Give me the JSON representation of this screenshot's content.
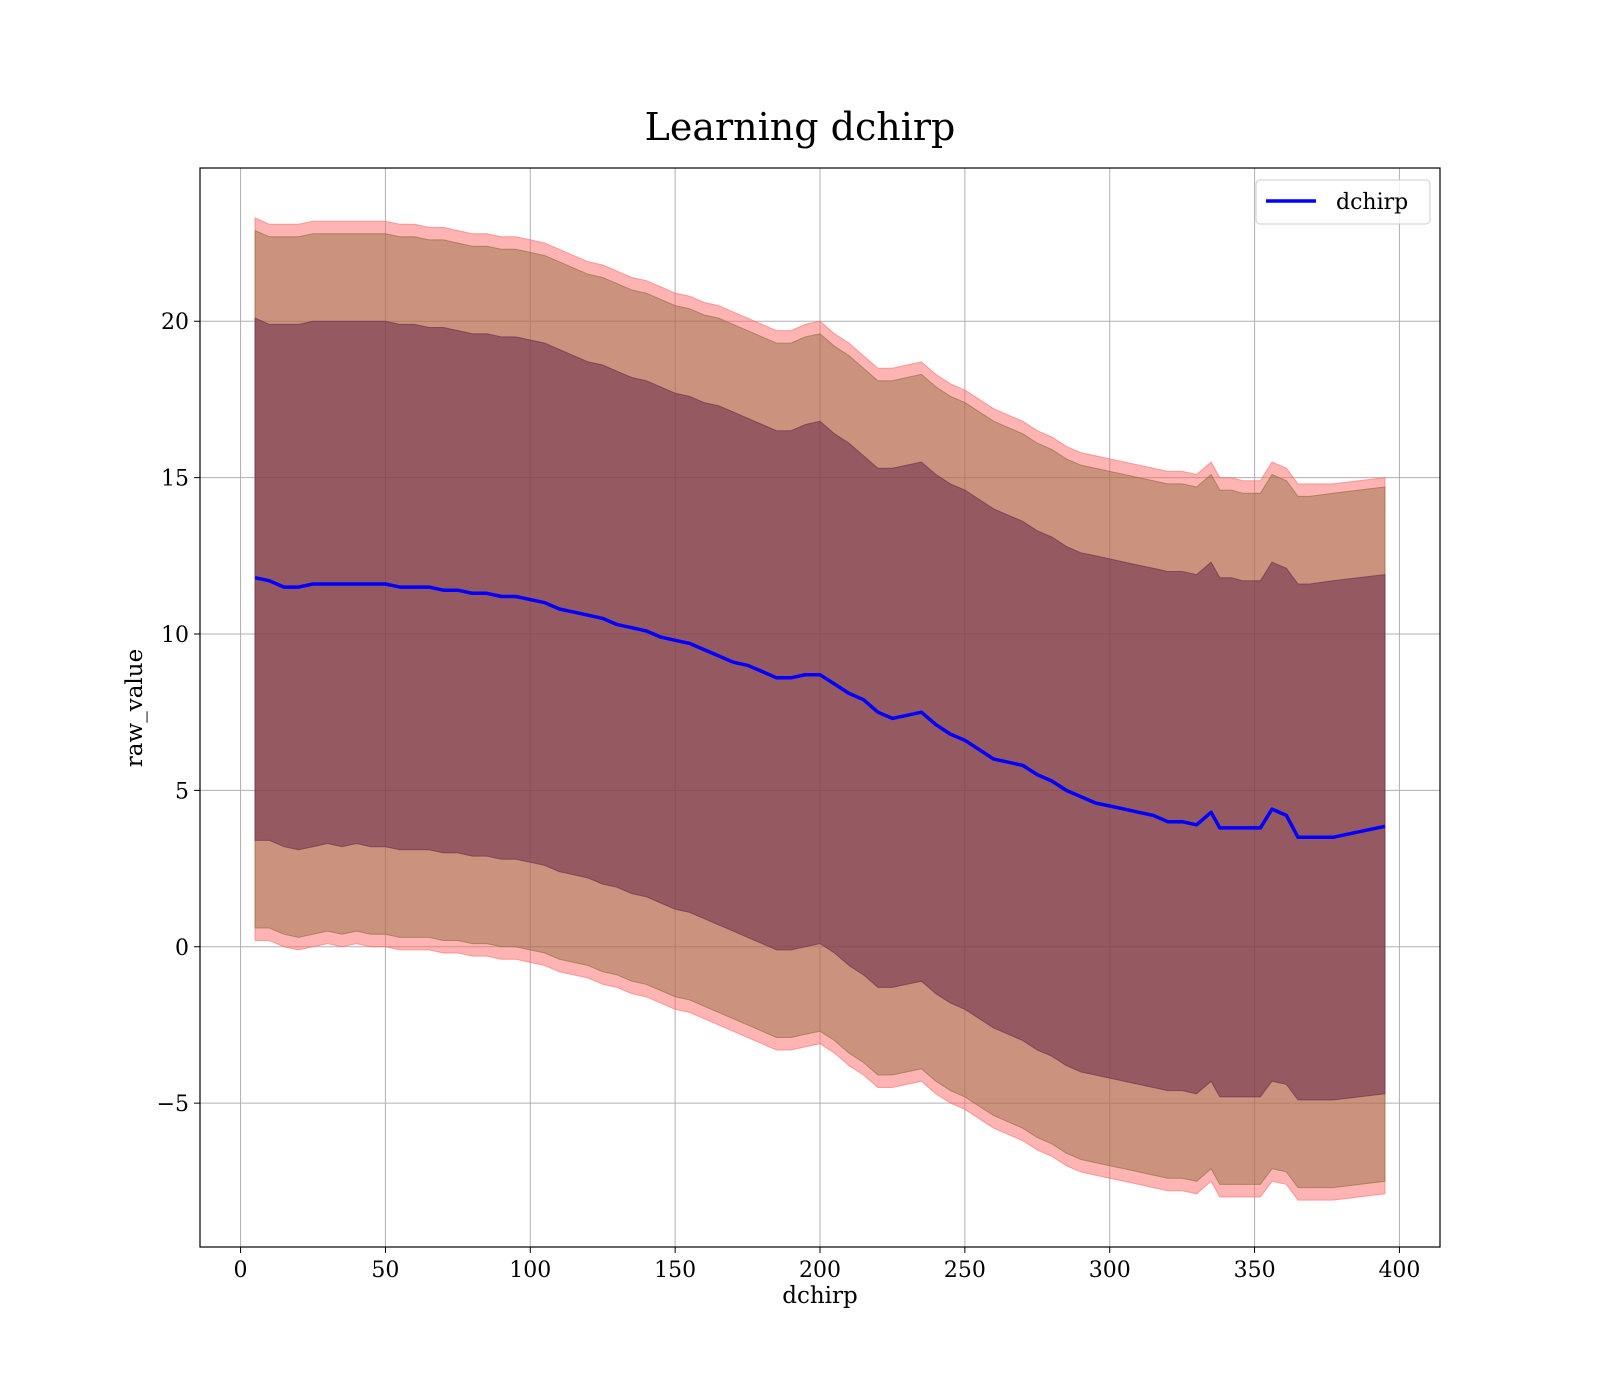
{
  "chart_data": {
    "type": "line",
    "title": "Learning dchirp",
    "xlabel": "dchirp",
    "ylabel": "raw_value",
    "xlim": [
      -14,
      414
    ],
    "ylim": [
      -9.6,
      24.9
    ],
    "x_ticks": [
      0,
      50,
      100,
      150,
      200,
      250,
      300,
      350,
      400
    ],
    "y_ticks": [
      -5,
      0,
      5,
      10,
      15,
      20
    ],
    "x_tick_labels": [
      "0",
      "50",
      "100",
      "150",
      "200",
      "250",
      "300",
      "350",
      "400"
    ],
    "y_tick_labels": [
      "−5",
      "0",
      "5",
      "10",
      "15",
      "20"
    ],
    "grid": true,
    "legend_position": "top-right",
    "series": [
      {
        "name": "dchirp",
        "color": "#0000ff",
        "x": [
          5,
          10,
          15,
          20,
          25,
          30,
          35,
          40,
          45,
          50,
          55,
          60,
          65,
          70,
          75,
          80,
          85,
          90,
          95,
          100,
          105,
          110,
          115,
          120,
          125,
          130,
          135,
          140,
          145,
          150,
          155,
          160,
          165,
          170,
          175,
          180,
          185,
          190,
          195,
          200,
          205,
          210,
          215,
          220,
          225,
          230,
          235,
          240,
          245,
          250,
          255,
          260,
          265,
          270,
          275,
          280,
          285,
          290,
          295,
          300,
          305,
          310,
          315,
          320,
          325,
          330,
          335,
          338,
          342,
          346,
          352,
          356,
          361,
          365,
          369,
          377,
          395
        ],
        "y": [
          11.8,
          11.7,
          11.5,
          11.5,
          11.6,
          11.6,
          11.6,
          11.6,
          11.6,
          11.6,
          11.5,
          11.5,
          11.5,
          11.4,
          11.4,
          11.3,
          11.3,
          11.2,
          11.2,
          11.1,
          11.0,
          10.8,
          10.7,
          10.6,
          10.5,
          10.3,
          10.2,
          10.1,
          9.9,
          9.8,
          9.7,
          9.5,
          9.3,
          9.1,
          9.0,
          8.8,
          8.6,
          8.6,
          8.7,
          8.7,
          8.4,
          8.1,
          7.9,
          7.5,
          7.3,
          7.4,
          7.5,
          7.1,
          6.8,
          6.6,
          6.3,
          6.0,
          5.9,
          5.8,
          5.5,
          5.3,
          5.0,
          4.8,
          4.6,
          4.5,
          4.4,
          4.3,
          4.2,
          4.0,
          4.0,
          3.9,
          4.3,
          3.8,
          3.8,
          3.8,
          3.8,
          4.4,
          4.2,
          3.5,
          3.5,
          3.5,
          3.85
        ]
      }
    ],
    "bands": [
      {
        "color": "#ff6a6a",
        "opacity": 0.5,
        "upper": [
          23.3,
          23.1,
          23.1,
          23.1,
          23.2,
          23.2,
          23.2,
          23.2,
          23.2,
          23.2,
          23.1,
          23.1,
          23.0,
          23.0,
          22.9,
          22.8,
          22.8,
          22.7,
          22.7,
          22.6,
          22.5,
          22.3,
          22.1,
          21.9,
          21.8,
          21.6,
          21.4,
          21.3,
          21.1,
          20.9,
          20.8,
          20.6,
          20.5,
          20.3,
          20.1,
          19.9,
          19.7,
          19.7,
          19.9,
          20.0,
          19.6,
          19.3,
          18.9,
          18.5,
          18.5,
          18.6,
          18.7,
          18.3,
          18.0,
          17.8,
          17.5,
          17.2,
          17.0,
          16.8,
          16.5,
          16.3,
          16.0,
          15.8,
          15.7,
          15.6,
          15.5,
          15.4,
          15.3,
          15.2,
          15.2,
          15.1,
          15.5,
          15.0,
          15.0,
          14.9,
          14.9,
          15.5,
          15.3,
          14.8,
          14.8,
          14.8,
          15.0
        ],
        "lower": [
          0.2,
          0.2,
          0.0,
          -0.1,
          0.0,
          0.1,
          0.0,
          0.1,
          0.0,
          0.0,
          -0.1,
          -0.1,
          -0.1,
          -0.2,
          -0.2,
          -0.3,
          -0.3,
          -0.4,
          -0.4,
          -0.5,
          -0.6,
          -0.8,
          -0.9,
          -1.0,
          -1.2,
          -1.3,
          -1.5,
          -1.6,
          -1.8,
          -2.0,
          -2.1,
          -2.3,
          -2.5,
          -2.7,
          -2.9,
          -3.1,
          -3.3,
          -3.3,
          -3.2,
          -3.1,
          -3.4,
          -3.8,
          -4.1,
          -4.5,
          -4.5,
          -4.4,
          -4.3,
          -4.7,
          -5.0,
          -5.2,
          -5.5,
          -5.8,
          -6.0,
          -6.2,
          -6.5,
          -6.7,
          -7.0,
          -7.2,
          -7.3,
          -7.4,
          -7.5,
          -7.6,
          -7.7,
          -7.8,
          -7.8,
          -7.9,
          -7.5,
          -8.0,
          -8.0,
          -8.0,
          -8.0,
          -7.5,
          -7.6,
          -8.1,
          -8.1,
          -8.1,
          -7.9
        ]
      },
      {
        "color": "#8b6a3c",
        "opacity": 0.45,
        "upper": [
          22.9,
          22.7,
          22.7,
          22.7,
          22.8,
          22.8,
          22.8,
          22.8,
          22.8,
          22.8,
          22.7,
          22.7,
          22.6,
          22.6,
          22.5,
          22.4,
          22.4,
          22.3,
          22.3,
          22.2,
          22.1,
          21.9,
          21.7,
          21.5,
          21.4,
          21.2,
          21.0,
          20.9,
          20.7,
          20.5,
          20.4,
          20.2,
          20.1,
          19.9,
          19.7,
          19.5,
          19.3,
          19.3,
          19.5,
          19.6,
          19.2,
          18.9,
          18.5,
          18.1,
          18.1,
          18.2,
          18.3,
          17.9,
          17.6,
          17.4,
          17.1,
          16.8,
          16.6,
          16.4,
          16.1,
          15.9,
          15.6,
          15.4,
          15.3,
          15.2,
          15.1,
          15.0,
          14.9,
          14.8,
          14.8,
          14.7,
          15.1,
          14.6,
          14.6,
          14.5,
          14.5,
          15.1,
          14.9,
          14.4,
          14.4,
          14.5,
          14.7
        ],
        "lower": [
          0.6,
          0.6,
          0.4,
          0.3,
          0.4,
          0.5,
          0.4,
          0.5,
          0.4,
          0.4,
          0.3,
          0.3,
          0.3,
          0.2,
          0.2,
          0.1,
          0.1,
          0.0,
          0.0,
          -0.1,
          -0.2,
          -0.4,
          -0.5,
          -0.6,
          -0.8,
          -0.9,
          -1.1,
          -1.2,
          -1.4,
          -1.6,
          -1.7,
          -1.9,
          -2.1,
          -2.3,
          -2.5,
          -2.7,
          -2.9,
          -2.9,
          -2.8,
          -2.7,
          -3.0,
          -3.4,
          -3.7,
          -4.1,
          -4.1,
          -4.0,
          -3.9,
          -4.3,
          -4.6,
          -4.8,
          -5.1,
          -5.4,
          -5.6,
          -5.8,
          -6.1,
          -6.3,
          -6.6,
          -6.8,
          -6.9,
          -7.0,
          -7.1,
          -7.2,
          -7.3,
          -7.4,
          -7.4,
          -7.5,
          -7.1,
          -7.6,
          -7.6,
          -7.6,
          -7.6,
          -7.1,
          -7.2,
          -7.7,
          -7.7,
          -7.7,
          -7.5
        ]
      },
      {
        "color": "#6a2a48",
        "opacity": 0.55,
        "upper": [
          20.1,
          19.9,
          19.9,
          19.9,
          20.0,
          20.0,
          20.0,
          20.0,
          20.0,
          20.0,
          19.9,
          19.9,
          19.8,
          19.8,
          19.7,
          19.6,
          19.6,
          19.5,
          19.5,
          19.4,
          19.3,
          19.1,
          18.9,
          18.7,
          18.6,
          18.4,
          18.2,
          18.1,
          17.9,
          17.7,
          17.6,
          17.4,
          17.3,
          17.1,
          16.9,
          16.7,
          16.5,
          16.5,
          16.7,
          16.8,
          16.4,
          16.1,
          15.7,
          15.3,
          15.3,
          15.4,
          15.5,
          15.1,
          14.8,
          14.6,
          14.3,
          14.0,
          13.8,
          13.6,
          13.3,
          13.1,
          12.8,
          12.6,
          12.5,
          12.4,
          12.3,
          12.2,
          12.1,
          12.0,
          12.0,
          11.9,
          12.3,
          11.8,
          11.8,
          11.7,
          11.7,
          12.3,
          12.1,
          11.6,
          11.6,
          11.7,
          11.9
        ],
        "lower": [
          3.4,
          3.4,
          3.2,
          3.1,
          3.2,
          3.3,
          3.2,
          3.3,
          3.2,
          3.2,
          3.1,
          3.1,
          3.1,
          3.0,
          3.0,
          2.9,
          2.9,
          2.8,
          2.8,
          2.7,
          2.6,
          2.4,
          2.3,
          2.2,
          2.0,
          1.9,
          1.7,
          1.6,
          1.4,
          1.2,
          1.1,
          0.9,
          0.7,
          0.5,
          0.3,
          0.1,
          -0.1,
          -0.1,
          0.0,
          0.1,
          -0.2,
          -0.6,
          -0.9,
          -1.3,
          -1.3,
          -1.2,
          -1.1,
          -1.5,
          -1.8,
          -2.0,
          -2.3,
          -2.6,
          -2.8,
          -3.0,
          -3.3,
          -3.5,
          -3.8,
          -4.0,
          -4.1,
          -4.2,
          -4.3,
          -4.4,
          -4.5,
          -4.6,
          -4.6,
          -4.7,
          -4.3,
          -4.8,
          -4.8,
          -4.8,
          -4.8,
          -4.3,
          -4.4,
          -4.9,
          -4.9,
          -4.9,
          -4.7
        ]
      }
    ]
  }
}
